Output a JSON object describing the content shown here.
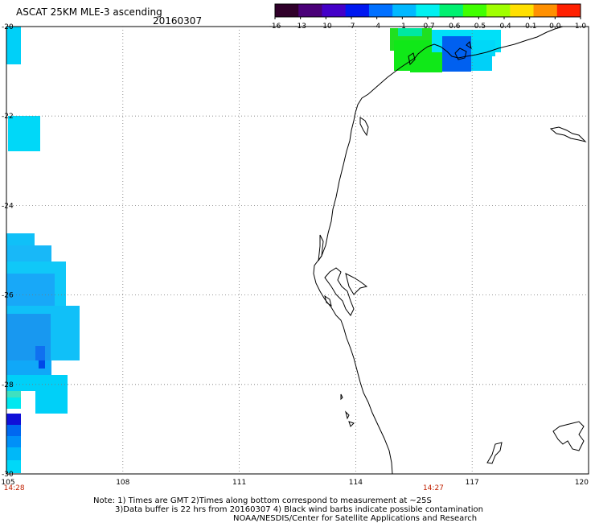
{
  "header": {
    "title": "ASCAT 25KM MLE-3 ascending",
    "date": "20160307"
  },
  "colorbar": {
    "labels": [
      "-16",
      "-13",
      "-10",
      "-7",
      "-4",
      "-1",
      "-0.7",
      "-0.6",
      "-0.5",
      "-0.4",
      "-0.1",
      "0.0",
      "1.0"
    ],
    "colors": [
      "#30002a",
      "#4a0078",
      "#4400c8",
      "#0018f0",
      "#0070ff",
      "#00b8ff",
      "#00f0f0",
      "#00f070",
      "#40ff00",
      "#a0ff00",
      "#ffe000",
      "#ff9000",
      "#ff2000"
    ]
  },
  "map": {
    "lon_range": [
      105,
      120
    ],
    "lat_range": [
      -30,
      -20
    ],
    "x_ticks": [
      "105",
      "108",
      "111",
      "114",
      "117",
      "120"
    ],
    "y_ticks": [
      "-20",
      "-22",
      "-24",
      "-26",
      "-28",
      "-30"
    ],
    "time_labels": [
      {
        "text": "14:28",
        "lon": 105.2
      },
      {
        "text": "14:27",
        "lon": 116.0
      }
    ],
    "gridlines": true,
    "line_color": "#000000",
    "time_color": "#c02000"
  },
  "notes": {
    "line1": "Note: 1) Times are GMT 2)Times along bottom correspond to measurement at ~25S",
    "line2": "3)Data buffer is 22 hrs from 20160307 4) Black wind barbs indicate possible contamination",
    "line3": "NOAA/NESDIS/Center for Satellite Applications and Research"
  }
}
